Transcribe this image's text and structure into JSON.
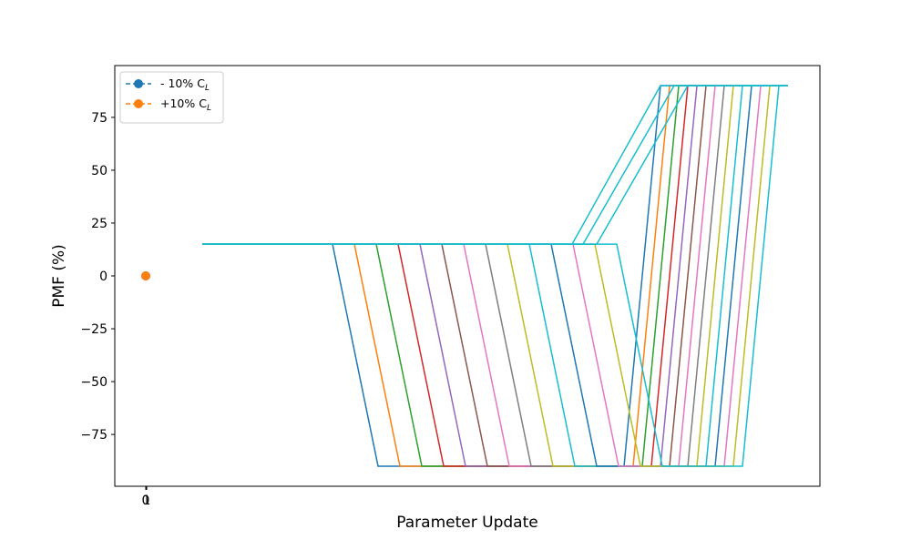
{
  "chart_data": {
    "type": "line",
    "x_label": "Parameter Update",
    "y_label": "PMF (%)",
    "xlim": [
      -34,
      740
    ],
    "ylim": [
      -99.5,
      99.5
    ],
    "xticks": [
      0,
      1
    ],
    "yticks": [
      -75,
      -50,
      -25,
      0,
      25,
      50,
      75
    ],
    "series": [
      {
        "name": "- 10% CL",
        "color": "#1f77b4",
        "x": [
          0
        ],
        "values": [
          0
        ],
        "marker": true,
        "dashed": true
      },
      {
        "name": "+10% CL",
        "color": "#ff7f0e",
        "x": [
          0
        ],
        "values": [
          0
        ],
        "marker": true,
        "dashed": true
      },
      {
        "color": "#1f77b4",
        "x": [
          62,
          205,
          255,
          525,
          565,
          705
        ],
        "values": [
          15,
          15,
          -90,
          -90,
          90,
          90
        ]
      },
      {
        "color": "#ff7f0e",
        "x": [
          62,
          229,
          279,
          535,
          575,
          705
        ],
        "values": [
          15,
          15,
          -90,
          -90,
          90,
          90
        ]
      },
      {
        "color": "#2ca02c",
        "x": [
          62,
          253,
          303,
          545,
          585,
          705
        ],
        "values": [
          15,
          15,
          -90,
          -90,
          90,
          90
        ]
      },
      {
        "color": "#d62728",
        "x": [
          62,
          277,
          327,
          555,
          595,
          705
        ],
        "values": [
          15,
          15,
          -90,
          -90,
          90,
          90
        ]
      },
      {
        "color": "#9467bd",
        "x": [
          62,
          301,
          351,
          565,
          605,
          705
        ],
        "values": [
          15,
          15,
          -90,
          -90,
          90,
          90
        ]
      },
      {
        "color": "#8c564b",
        "x": [
          62,
          325,
          375,
          575,
          615,
          705
        ],
        "values": [
          15,
          15,
          -90,
          -90,
          90,
          90
        ]
      },
      {
        "color": "#e377c2",
        "x": [
          62,
          349,
          399,
          585,
          625,
          705
        ],
        "values": [
          15,
          15,
          -90,
          -90,
          90,
          90
        ]
      },
      {
        "color": "#7f7f7f",
        "x": [
          62,
          373,
          423,
          595,
          635,
          705
        ],
        "values": [
          15,
          15,
          -90,
          -90,
          90,
          90
        ]
      },
      {
        "color": "#bcbd22",
        "x": [
          62,
          397,
          447,
          605,
          645,
          705
        ],
        "values": [
          15,
          15,
          -90,
          -90,
          90,
          90
        ]
      },
      {
        "color": "#17becf",
        "x": [
          62,
          421,
          471,
          615,
          655,
          705
        ],
        "values": [
          15,
          15,
          -90,
          -90,
          90,
          90
        ]
      },
      {
        "color": "#1f77b4",
        "x": [
          62,
          445,
          495,
          625,
          665,
          705
        ],
        "values": [
          15,
          15,
          -90,
          -90,
          90,
          90
        ]
      },
      {
        "color": "#e377c2",
        "x": [
          62,
          469,
          519,
          635,
          675,
          705
        ],
        "values": [
          15,
          15,
          -90,
          -90,
          90,
          90
        ]
      },
      {
        "color": "#bcbd22",
        "x": [
          62,
          493,
          543,
          645,
          685,
          705
        ],
        "values": [
          15,
          15,
          -90,
          -90,
          90,
          90
        ]
      },
      {
        "color": "#17becf",
        "x": [
          62,
          517,
          567,
          655,
          695,
          705
        ],
        "values": [
          15,
          15,
          -90,
          -90,
          90,
          90
        ]
      },
      {
        "color": "#17becf",
        "x": [
          62,
          468,
          565,
          705
        ],
        "values": [
          15,
          15,
          90,
          90
        ]
      },
      {
        "color": "#17becf",
        "x": [
          62,
          480,
          580,
          705
        ],
        "values": [
          15,
          15,
          90,
          90
        ]
      },
      {
        "color": "#17becf",
        "x": [
          62,
          495,
          595,
          705
        ],
        "values": [
          15,
          15,
          90,
          90
        ]
      }
    ]
  }
}
